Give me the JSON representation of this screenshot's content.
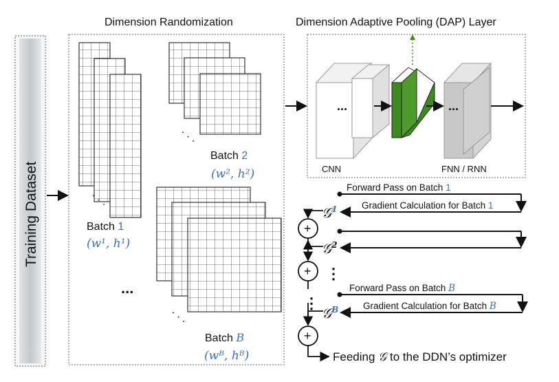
{
  "left": {
    "label": "Training Dataset"
  },
  "randomization": {
    "title": "Dimension Randomization",
    "batch1": {
      "label": "Batch",
      "index": "1",
      "dims": "(w¹, h¹)"
    },
    "batch2": {
      "label": "Batch",
      "index": "2",
      "dims": "(w², h²)"
    },
    "batchB": {
      "label": "Batch",
      "index": "B",
      "dims": "(wᴮ, hᴮ)"
    },
    "ellipsis": "..."
  },
  "dap": {
    "title": "Dimension Adaptive Pooling (DAP) Layer",
    "cnn_label": "CNN",
    "fnn_label": "FNN / RNN",
    "dots": "..."
  },
  "training": {
    "forward_1": {
      "text": "Forward Pass on Batch",
      "index": "1"
    },
    "grad_1": {
      "text": "Gradient Calculation for Batch",
      "index": "1"
    },
    "forward_B": {
      "text": "Forward Pass on Batch",
      "index": "B"
    },
    "grad_B": {
      "text": "Gradient Calculation for Batch",
      "index": "B"
    },
    "g_symbol": "𝒢",
    "g1_sup": "1",
    "g2_sup": "2",
    "gB_sup": "B",
    "plus": "+",
    "vdots": "⋮",
    "feed": "Feeding",
    "feed_g": "𝒢",
    "feed_rest": "to the DDN’s optimizer"
  },
  "colors": {
    "accent": "#3b6fb6",
    "green": "#3d8a1f"
  }
}
